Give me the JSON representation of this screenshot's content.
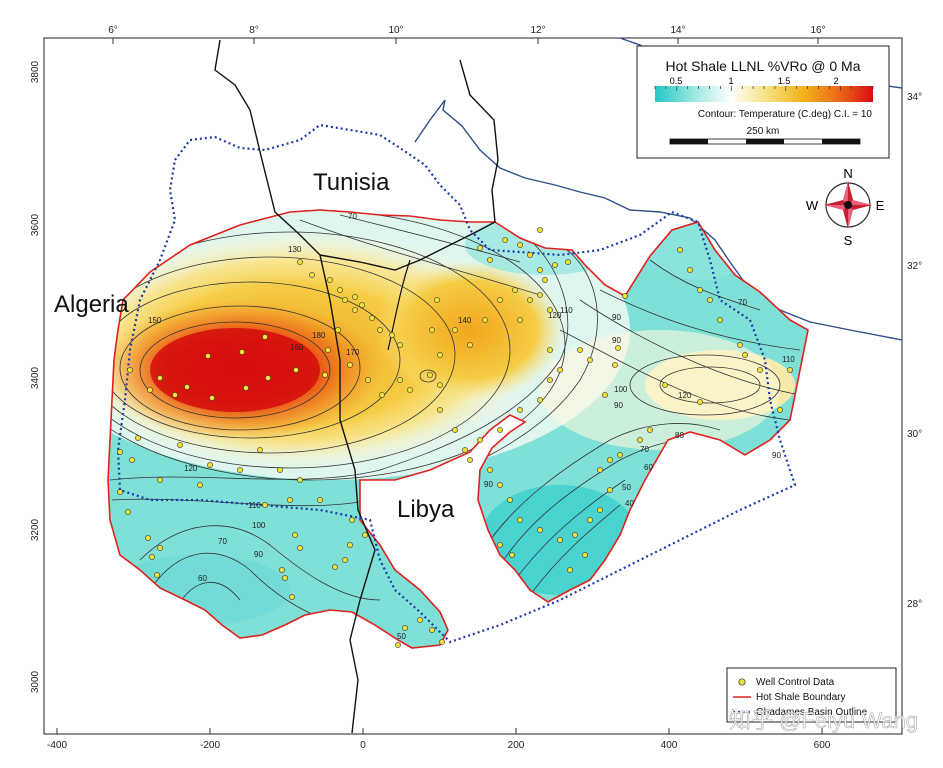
{
  "title": "Hot Shale LLNL %VRo @ 0 Ma",
  "colorbar": {
    "ticks": [
      "0.5",
      "1",
      "1.5",
      "2"
    ],
    "stops": [
      "#22c7c7",
      "#9be8e0",
      "#ffffff",
      "#f5e07a",
      "#f3b21a",
      "#ec6a1a",
      "#d80e10"
    ]
  },
  "contour_caption": "Contour: Temperature (C.deg) C.I. = 10",
  "scale_label": "250 km",
  "compass": {
    "n": "N",
    "s": "S",
    "e": "E",
    "w": "W"
  },
  "top_ticks": [
    "6°",
    "8°",
    "10°",
    "12°",
    "14°",
    "16°"
  ],
  "bottom_ticks": [
    "-400",
    "-200",
    "0",
    "200",
    "400",
    "600"
  ],
  "left_ticks": [
    "3800",
    "3600",
    "3400",
    "3200",
    "3000"
  ],
  "right_ticks": [
    "34°",
    "32°",
    "30°",
    "28°"
  ],
  "regions": {
    "tunisia": "Tunisia",
    "algeria": "Algeria",
    "libya": "Libya"
  },
  "contour_labels": [
    "70",
    "130",
    "150",
    "160",
    "170",
    "180",
    "140",
    "120",
    "110",
    "100",
    "90",
    "80",
    "60",
    "50",
    "40"
  ],
  "legend": {
    "items": [
      "Well Control Data",
      "Hot Shale Boundary",
      "Ghadames Basin Outline"
    ]
  },
  "watermark": "知乎 @Feiyu Wang",
  "colors": {
    "boundary": "#e0201c",
    "basin_outline": "#1a3aa8",
    "coast": "#2f4d8c",
    "well": "#f1e23a"
  }
}
